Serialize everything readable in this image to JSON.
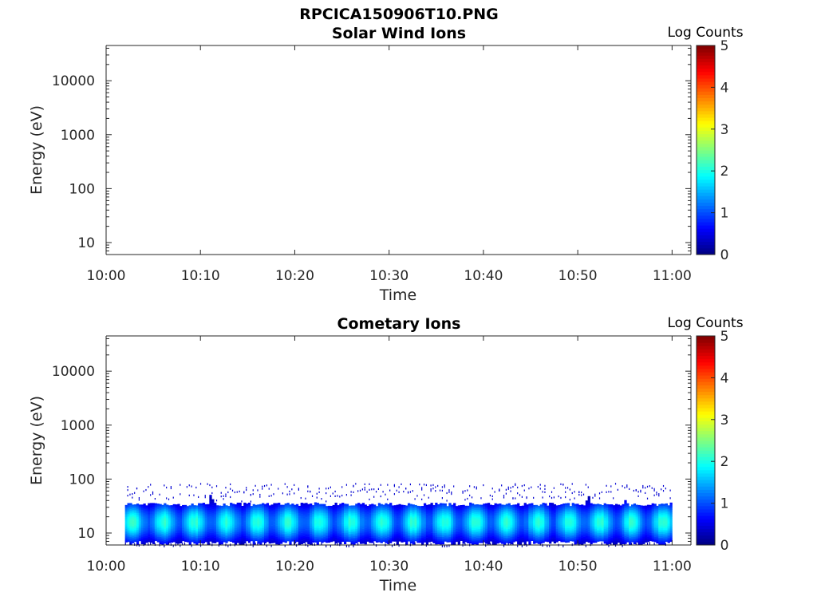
{
  "figure": {
    "title": "RPCICA150906T10.PNG"
  },
  "chart_data": [
    {
      "type": "heatmap",
      "title": "Solar Wind Ions",
      "xlabel": "Time",
      "ylabel": "Energy (eV)",
      "x_ticks": [
        "10:00",
        "10:10",
        "10:20",
        "10:30",
        "10:40",
        "10:50",
        "11:00"
      ],
      "y_ticks": [
        "10",
        "100",
        "1000",
        "10000"
      ],
      "y_scale": "log",
      "ylim": [
        6,
        45000
      ],
      "xlim": [
        "10:00",
        "11:02"
      ],
      "colorbar": {
        "label": "Log Counts",
        "ticks": [
          "0",
          "1",
          "2",
          "3",
          "4",
          "5"
        ],
        "range": [
          0,
          5
        ],
        "colormap": "jet"
      },
      "data": []
    },
    {
      "type": "heatmap",
      "title": "Cometary Ions",
      "xlabel": "Time",
      "ylabel": "Energy (eV)",
      "x_ticks": [
        "10:00",
        "10:10",
        "10:20",
        "10:30",
        "10:40",
        "10:50",
        "11:00"
      ],
      "y_ticks": [
        "10",
        "100",
        "1000",
        "10000"
      ],
      "y_scale": "log",
      "ylim": [
        6,
        45000
      ],
      "xlim": [
        "10:00",
        "11:02"
      ],
      "colorbar": {
        "label": "Log Counts",
        "ticks": [
          "0",
          "1",
          "2",
          "3",
          "4",
          "5"
        ],
        "range": [
          0,
          5
        ],
        "colormap": "jet"
      },
      "data_time_range": [
        "10:02",
        "11:00"
      ],
      "energy_band_eV": [
        6,
        35
      ],
      "peak_energy_eV": 16,
      "peak_log_counts": 2.1,
      "sparse_counts_up_to_eV": 85,
      "bursts": [
        {
          "time": "10:11",
          "max_energy_eV": 55
        },
        {
          "time": "10:22",
          "max_energy_eV": 40
        },
        {
          "time": "10:51",
          "max_energy_eV": 52
        },
        {
          "time": "10:55",
          "max_energy_eV": 45
        }
      ]
    }
  ]
}
